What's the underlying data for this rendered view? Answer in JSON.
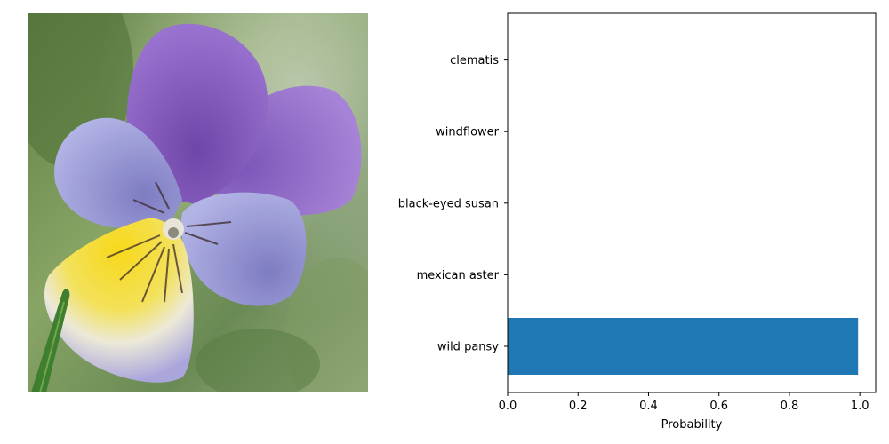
{
  "photo": {
    "subject": "wild pansy flower photo",
    "colors": {
      "background_green": "#6f8f4f",
      "petal_purple": "#8e63c4",
      "petal_lavender": "#9b9ad6",
      "center_yellow": "#f5dc1e",
      "lip_white": "#e7e6f2",
      "stem_green": "#3f7d2f"
    }
  },
  "chart_data": {
    "type": "bar",
    "orientation": "horizontal",
    "categories": [
      "wild pansy",
      "mexican aster",
      "black-eyed susan",
      "windflower",
      "clematis"
    ],
    "values": [
      0.995,
      0.0,
      0.0,
      0.0,
      0.0
    ],
    "xlabel": "Probability",
    "ylabel": "",
    "title": "",
    "xlim": [
      0.0,
      1.045
    ],
    "xticks": [
      "0.0",
      "0.2",
      "0.4",
      "0.6",
      "0.8",
      "1.0"
    ],
    "grid": false,
    "bar_color": "#1f77b4"
  }
}
